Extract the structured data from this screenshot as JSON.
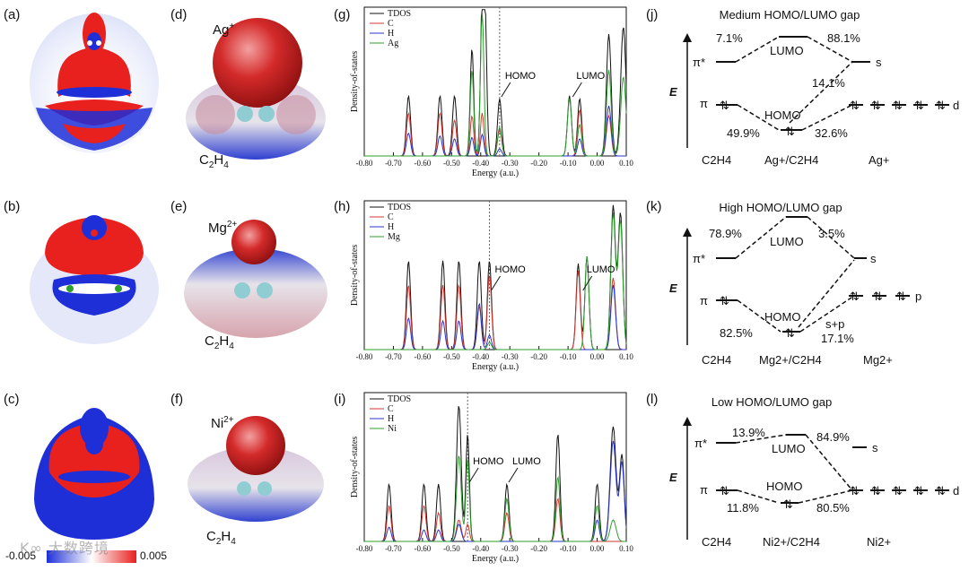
{
  "panels": {
    "density": [
      {
        "label": "(a)"
      },
      {
        "label": "(b)"
      },
      {
        "label": "(c)"
      }
    ],
    "surfaces": [
      {
        "label": "(d)",
        "ion": "Ag",
        "ion_sup": "+",
        "molecule": "C",
        "mol_sub": "2",
        "mol_rest": "H",
        "mol_sub2": "4"
      },
      {
        "label": "(e)",
        "ion": "Mg",
        "ion_sup": "2+",
        "molecule": "C",
        "mol_sub": "2",
        "mol_rest": "H",
        "mol_sub2": "4"
      },
      {
        "label": "(f)",
        "ion": "Ni",
        "ion_sup": "2+",
        "molecule": "C",
        "mol_sub": "2",
        "mol_rest": "H",
        "mol_sub2": "4"
      }
    ],
    "colorbar": {
      "min": "-0.005",
      "max": "0.005",
      "colors": [
        "#1f2fd8",
        "#ffffff",
        "#e8201e"
      ]
    }
  },
  "watermark": "K∞ 大数跨境",
  "chart_data": [
    {
      "type": "line",
      "panel": "(g)",
      "ylabel": "Density-of-states",
      "xlabel": "Energy (a.u.)",
      "xlim": [
        -0.8,
        0.1
      ],
      "x_ticks": [
        "-0.80",
        "-0.70",
        "-0.60",
        "-0.50",
        "-0.40",
        "-0.30",
        "-0.20",
        "-0.10",
        "0.00",
        "0.10"
      ],
      "legend": [
        "TDOS",
        "C",
        "H",
        "Ag"
      ],
      "annotations": [
        {
          "text": "HOMO",
          "x": -0.335
        },
        {
          "text": "LUMO",
          "x": -0.09
        }
      ],
      "homo_line": -0.335,
      "series": [
        {
          "name": "TDOS",
          "color": "#111111",
          "peaks": [
            [
              -0.648,
              0.42,
              0.007
            ],
            [
              -0.54,
              0.42,
              0.007
            ],
            [
              -0.49,
              0.42,
              0.007
            ],
            [
              -0.43,
              0.75,
              0.006
            ],
            [
              -0.395,
              1.0,
              0.006
            ],
            [
              -0.385,
              0.9,
              0.006
            ],
            [
              -0.335,
              0.4,
              0.007
            ],
            [
              -0.095,
              0.42,
              0.007
            ],
            [
              -0.06,
              0.4,
              0.007
            ],
            [
              0.04,
              0.85,
              0.008
            ],
            [
              0.09,
              0.9,
              0.009
            ]
          ]
        },
        {
          "name": "C",
          "color": "#d23a33",
          "peaks": [
            [
              -0.648,
              0.3,
              0.007
            ],
            [
              -0.54,
              0.3,
              0.007
            ],
            [
              -0.49,
              0.25,
              0.007
            ],
            [
              -0.43,
              0.28,
              0.006
            ],
            [
              -0.395,
              0.3,
              0.006
            ],
            [
              -0.335,
              0.18,
              0.007
            ],
            [
              -0.06,
              0.32,
              0.007
            ],
            [
              0.04,
              0.28,
              0.008
            ]
          ]
        },
        {
          "name": "H",
          "color": "#2a36c8",
          "peaks": [
            [
              -0.648,
              0.16,
              0.007
            ],
            [
              -0.54,
              0.14,
              0.007
            ],
            [
              -0.49,
              0.12,
              0.007
            ],
            [
              -0.43,
              0.13,
              0.006
            ],
            [
              -0.395,
              0.15,
              0.006
            ],
            [
              -0.335,
              0.05,
              0.007
            ],
            [
              -0.06,
              0.12,
              0.007
            ],
            [
              0.04,
              0.35,
              0.008
            ]
          ]
        },
        {
          "name": "Ag",
          "color": "#2e9e2e",
          "peaks": [
            [
              -0.43,
              0.6,
              0.006
            ],
            [
              -0.395,
              1.0,
              0.006
            ],
            [
              -0.335,
              0.2,
              0.007
            ],
            [
              -0.095,
              0.4,
              0.007
            ],
            [
              -0.06,
              0.22,
              0.007
            ],
            [
              0.04,
              0.6,
              0.008
            ],
            [
              0.09,
              0.55,
              0.009
            ]
          ]
        }
      ]
    },
    {
      "type": "line",
      "panel": "(h)",
      "ylabel": "Density-of-states",
      "xlabel": "Energy (a.u.)",
      "xlim": [
        -0.8,
        0.1
      ],
      "x_ticks": [
        "-0.80",
        "-0.70",
        "-0.60",
        "-0.50",
        "-0.40",
        "-0.30",
        "-0.20",
        "-0.10",
        "0.00",
        "0.10"
      ],
      "legend": [
        "TDOS",
        "C",
        "H",
        "Mg"
      ],
      "annotations": [
        {
          "text": "HOMO",
          "x": -0.37
        },
        {
          "text": "LUMO",
          "x": -0.055
        }
      ],
      "homo_line": -0.37,
      "series": [
        {
          "name": "TDOS",
          "color": "#111111",
          "peaks": [
            [
              -0.648,
              0.62,
              0.007
            ],
            [
              -0.53,
              0.62,
              0.007
            ],
            [
              -0.475,
              0.62,
              0.007
            ],
            [
              -0.405,
              0.62,
              0.007
            ],
            [
              -0.37,
              0.62,
              0.007
            ],
            [
              -0.065,
              0.6,
              0.007
            ],
            [
              -0.035,
              0.65,
              0.007
            ],
            [
              0.055,
              1.0,
              0.008
            ],
            [
              0.08,
              0.95,
              0.008
            ]
          ]
        },
        {
          "name": "C",
          "color": "#d23a33",
          "peaks": [
            [
              -0.648,
              0.45,
              0.007
            ],
            [
              -0.53,
              0.45,
              0.007
            ],
            [
              -0.475,
              0.45,
              0.007
            ],
            [
              -0.405,
              0.3,
              0.007
            ],
            [
              -0.37,
              0.52,
              0.007
            ],
            [
              -0.065,
              0.55,
              0.007
            ],
            [
              0.055,
              0.5,
              0.008
            ]
          ]
        },
        {
          "name": "H",
          "color": "#2a36c8",
          "peaks": [
            [
              -0.648,
              0.22,
              0.007
            ],
            [
              -0.53,
              0.2,
              0.007
            ],
            [
              -0.475,
              0.2,
              0.007
            ],
            [
              -0.405,
              0.32,
              0.007
            ],
            [
              -0.37,
              0.1,
              0.007
            ],
            [
              0.055,
              0.45,
              0.008
            ]
          ]
        },
        {
          "name": "Mg",
          "color": "#2e9e2e",
          "peaks": [
            [
              -0.37,
              0.05,
              0.007
            ],
            [
              -0.035,
              0.65,
              0.007
            ],
            [
              0.055,
              0.95,
              0.008
            ],
            [
              0.08,
              0.9,
              0.008
            ]
          ]
        }
      ]
    },
    {
      "type": "line",
      "panel": "(i)",
      "ylabel": "Density-of-states",
      "xlabel": "Energy (a.u.)",
      "xlim": [
        -0.8,
        0.1
      ],
      "x_ticks": [
        "-0.80",
        "-0.70",
        "-0.60",
        "-0.50",
        "-0.40",
        "-0.30",
        "-0.20",
        "-0.10",
        "0.00",
        "0.10"
      ],
      "legend": [
        "TDOS",
        "C",
        "H",
        "Ni"
      ],
      "annotations": [
        {
          "text": "HOMO",
          "x": -0.445
        },
        {
          "text": "LUMO",
          "x": -0.31
        }
      ],
      "homo_line": -0.445,
      "series": [
        {
          "name": "TDOS",
          "color": "#111111",
          "peaks": [
            [
              -0.715,
              0.4,
              0.007
            ],
            [
              -0.595,
              0.4,
              0.007
            ],
            [
              -0.545,
              0.4,
              0.007
            ],
            [
              -0.475,
              0.95,
              0.008
            ],
            [
              -0.445,
              0.75,
              0.006
            ],
            [
              -0.31,
              0.4,
              0.007
            ],
            [
              -0.135,
              0.75,
              0.007
            ],
            [
              0.0,
              0.4,
              0.007
            ],
            [
              0.055,
              0.8,
              0.01
            ],
            [
              0.085,
              0.6,
              0.008
            ]
          ]
        },
        {
          "name": "C",
          "color": "#d23a33",
          "peaks": [
            [
              -0.715,
              0.25,
              0.007
            ],
            [
              -0.595,
              0.25,
              0.007
            ],
            [
              -0.545,
              0.2,
              0.007
            ],
            [
              -0.475,
              0.15,
              0.008
            ],
            [
              -0.445,
              0.12,
              0.006
            ],
            [
              -0.31,
              0.2,
              0.007
            ],
            [
              -0.135,
              0.3,
              0.007
            ]
          ]
        },
        {
          "name": "H",
          "color": "#2a36c8",
          "peaks": [
            [
              -0.715,
              0.1,
              0.007
            ],
            [
              -0.595,
              0.08,
              0.007
            ],
            [
              -0.545,
              0.08,
              0.007
            ],
            [
              -0.475,
              0.12,
              0.008
            ],
            [
              0.0,
              0.15,
              0.007
            ],
            [
              0.055,
              0.7,
              0.01
            ],
            [
              0.085,
              0.55,
              0.008
            ]
          ]
        },
        {
          "name": "Ni",
          "color": "#2e9e2e",
          "peaks": [
            [
              -0.475,
              0.6,
              0.008
            ],
            [
              -0.445,
              0.58,
              0.006
            ],
            [
              -0.31,
              0.3,
              0.007
            ],
            [
              -0.135,
              0.45,
              0.007
            ],
            [
              0.0,
              0.25,
              0.007
            ],
            [
              0.055,
              0.15,
              0.01
            ]
          ]
        }
      ]
    }
  ],
  "mo_diagrams": [
    {
      "label": "(j)",
      "title": "Medium HOMO/LUMO gap",
      "axis": "E",
      "pi_star": "π*",
      "pi": "π",
      "lumo": "LUMO",
      "homo": "HOMO",
      "right_orbital": "s",
      "right_set": "d",
      "pct_top_left": "7.1%",
      "pct_top_right": "88.1%",
      "pct_mid": "14.1%",
      "pct_bot_left": "49.9%",
      "pct_bot_right": "32.6%",
      "bottom_left": "C2H4",
      "bottom_mid": "Ag+/C2H4",
      "bottom_right": "Ag+"
    },
    {
      "label": "(k)",
      "title": "High HOMO/LUMO gap",
      "axis": "E",
      "pi_star": "π*",
      "pi": "π",
      "lumo": "LUMO",
      "homo": "HOMO",
      "right_orbital": "s",
      "right_set": "p",
      "pct_top_left": "78.9%",
      "pct_top_right": "3.5%",
      "pct_mid": "s+p",
      "pct_bot_left": "82.5%",
      "pct_bot_right": "17.1%",
      "bottom_left": "C2H4",
      "bottom_mid": "Mg2+/C2H4",
      "bottom_right": "Mg2+"
    },
    {
      "label": "(l)",
      "title": "Low HOMO/LUMO gap",
      "axis": "E",
      "pi_star": "π*",
      "pi": "π",
      "lumo": "LUMO",
      "homo": "HOMO",
      "right_orbital": "s",
      "right_set": "d",
      "pct_top_left": "13.9%",
      "pct_top_right": "84.9%",
      "pct_mid": "",
      "pct_bot_left": "11.8%",
      "pct_bot_right": "80.5%",
      "bottom_left": "C2H4",
      "bottom_mid": "Ni2+/C2H4",
      "bottom_right": "Ni2+"
    }
  ]
}
